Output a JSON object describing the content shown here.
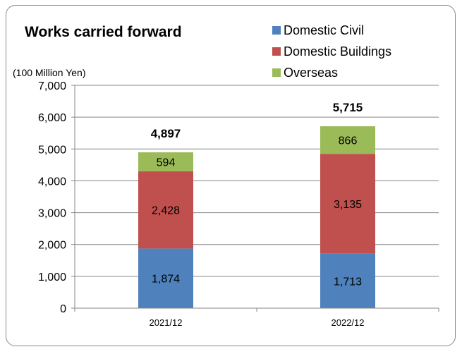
{
  "chart_data": {
    "type": "bar",
    "stacked": true,
    "title": "Works carried forward",
    "ylabel": "(100 Million Yen)",
    "categories": [
      "2021/12",
      "2022/12"
    ],
    "series": [
      {
        "name": "Domestic Civil",
        "values": [
          1874,
          1713
        ],
        "labels": [
          "1,874",
          "1,713"
        ],
        "color": "#4f81bd"
      },
      {
        "name": "Domestic Buildings",
        "values": [
          2428,
          3135
        ],
        "labels": [
          "2,428",
          "3,135"
        ],
        "color": "#c0504d"
      },
      {
        "name": "Overseas",
        "values": [
          594,
          866
        ],
        "labels": [
          "594",
          "866"
        ],
        "color": "#9bbb59"
      }
    ],
    "totals": [
      "4,897",
      "5,715"
    ],
    "ylim": [
      0,
      7000
    ],
    "yticks": [
      0,
      1000,
      2000,
      3000,
      4000,
      5000,
      6000,
      7000
    ],
    "ytick_labels": [
      "0",
      "1,000",
      "2,000",
      "3,000",
      "4,000",
      "5,000",
      "6,000",
      "7,000"
    ],
    "grid": true,
    "legend_position": "top-right"
  }
}
